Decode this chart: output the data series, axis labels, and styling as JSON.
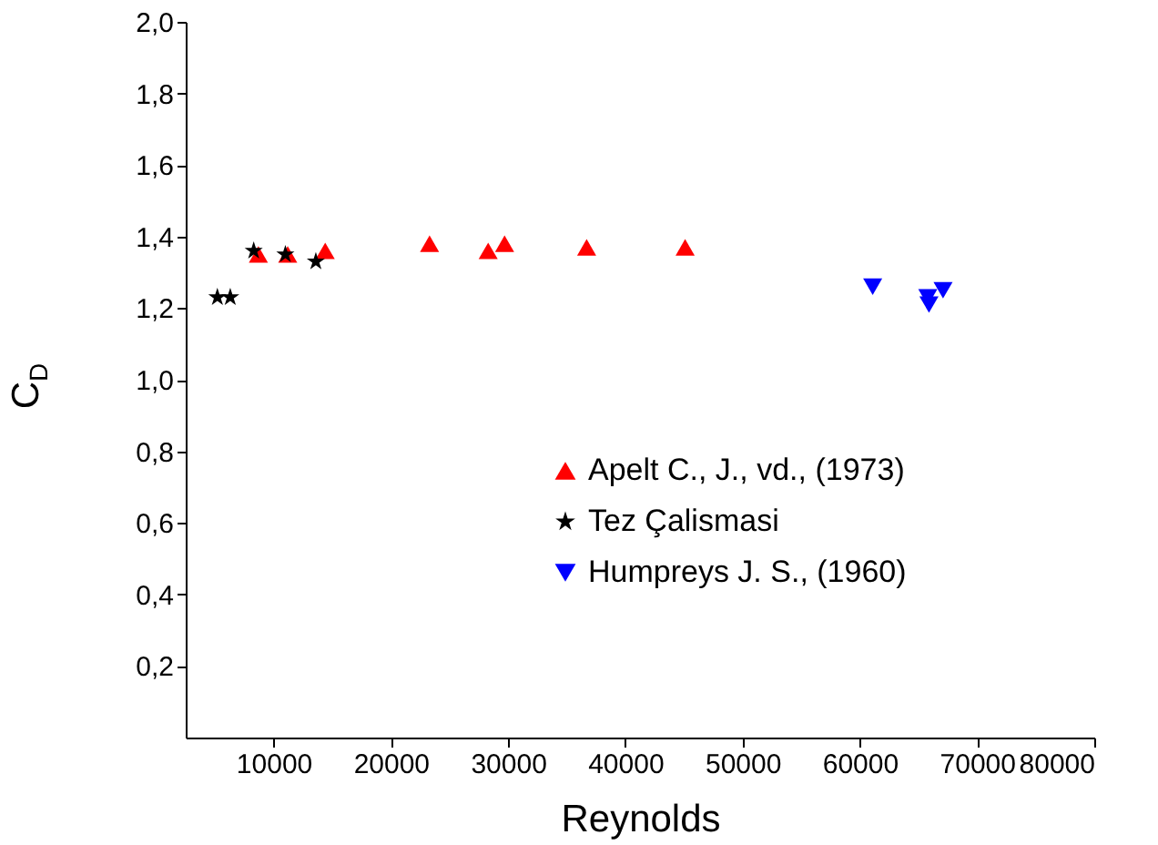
{
  "chart_data": {
    "type": "scatter",
    "xlabel": "Reynolds",
    "ylabel": "C$_{D}$",
    "xlim": [
      2500,
      80000
    ],
    "xticks": [
      10000,
      20000,
      30000,
      40000,
      50000,
      60000,
      70000,
      80000
    ],
    "ylim": [
      0,
      2.0
    ],
    "yticks": [
      {
        "value": 0.2,
        "label": "0,2"
      },
      {
        "value": 0.4,
        "label": "0,4"
      },
      {
        "value": 0.6,
        "label": "0,6"
      },
      {
        "value": 0.8,
        "label": "0,8"
      },
      {
        "value": 1.0,
        "label": "1,0"
      },
      {
        "value": 1.2,
        "label": "1,2"
      },
      {
        "value": 1.4,
        "label": "1,4"
      },
      {
        "value": 1.6,
        "label": "1,6"
      },
      {
        "value": 1.8,
        "label": "1,8"
      },
      {
        "value": 2.0,
        "label": "2,0"
      }
    ],
    "grid": false,
    "legend": "bottom right",
    "series": [
      {
        "name": "Apelt C., J., vd., (1973)",
        "color": "#ff0000",
        "marker": "triangle",
        "x": [
          8700,
          11200,
          14400,
          23300,
          28300,
          29700,
          36700,
          45100
        ],
        "values": [
          1.35,
          1.35,
          1.36,
          1.38,
          1.36,
          1.38,
          1.37,
          1.37
        ]
      },
      {
        "name": "Tez Çalismasi",
        "color": "#000000",
        "marker": "star",
        "x": [
          5200,
          6300,
          8300,
          11000,
          13600
        ],
        "values": [
          1.23,
          1.23,
          1.36,
          1.35,
          1.33
        ]
      },
      {
        "name": "Humpreys J. S., (1960)",
        "color": "#0000ff",
        "marker": "triangle-down",
        "x": [
          61100,
          65800,
          65900,
          67100
        ],
        "values": [
          1.26,
          1.23,
          1.21,
          1.25
        ]
      }
    ]
  }
}
